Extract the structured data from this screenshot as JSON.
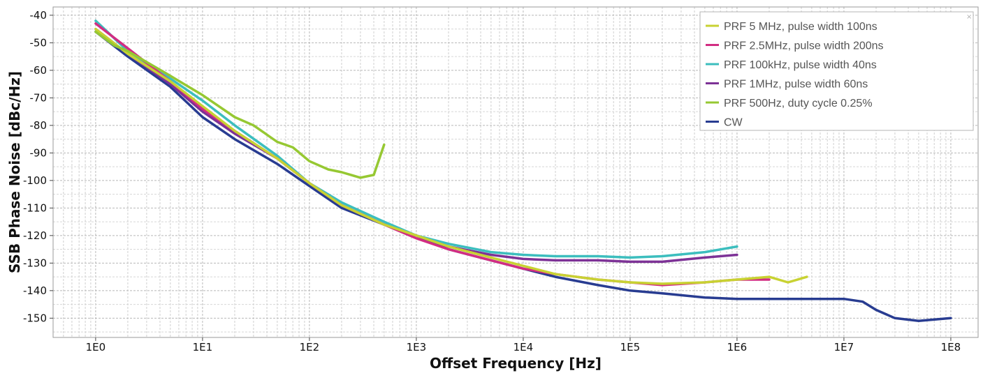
{
  "chart_data": {
    "type": "line",
    "xlabel": "Offset Frequency [Hz]",
    "ylabel": "SSB Phase Noise [dBc/Hz]",
    "x_scale": "log",
    "xlim": [
      0.4,
      180000000
    ],
    "ylim": [
      -157,
      -37
    ],
    "x_ticks": [
      {
        "value": 1,
        "label": "1E0"
      },
      {
        "value": 10,
        "label": "1E1"
      },
      {
        "value": 100,
        "label": "1E2"
      },
      {
        "value": 1000,
        "label": "1E3"
      },
      {
        "value": 10000,
        "label": "1E4"
      },
      {
        "value": 100000,
        "label": "1E5"
      },
      {
        "value": 1000000,
        "label": "1E6"
      },
      {
        "value": 10000000,
        "label": "1E7"
      },
      {
        "value": 100000000,
        "label": "1E8"
      }
    ],
    "y_ticks": [
      {
        "value": -40,
        "label": "-40"
      },
      {
        "value": -50,
        "label": "-50"
      },
      {
        "value": -60,
        "label": "-60"
      },
      {
        "value": -70,
        "label": "-70"
      },
      {
        "value": -80,
        "label": "-80"
      },
      {
        "value": -90,
        "label": "-90"
      },
      {
        "value": -100,
        "label": "-100"
      },
      {
        "value": -110,
        "label": "-110"
      },
      {
        "value": -120,
        "label": "-120"
      },
      {
        "value": -130,
        "label": "-130"
      },
      {
        "value": -140,
        "label": "-140"
      },
      {
        "value": -150,
        "label": "-150"
      }
    ],
    "grid": true,
    "legend_position": "top-right",
    "series": [
      {
        "name": "PRF 5 MHz, pulse width 100ns",
        "color": "#c8d232",
        "x": [
          1,
          2,
          5,
          10,
          20,
          50,
          100,
          200,
          500,
          1000,
          2000,
          5000,
          10000,
          20000,
          50000,
          100000,
          200000,
          500000,
          1000000,
          2000000,
          3000000,
          4500000
        ],
        "y": [
          -45,
          -54,
          -64,
          -73,
          -82,
          -92,
          -101,
          -109,
          -116,
          -120,
          -124,
          -128,
          -131,
          -134,
          -136,
          -137,
          -137.5,
          -137,
          -136,
          -135,
          -137,
          -135
        ]
      },
      {
        "name": "PRF 2.5MHz, pulse width 200ns",
        "color": "#d22d82",
        "x": [
          1,
          2,
          5,
          10,
          20,
          50,
          100,
          200,
          500,
          1000,
          2000,
          5000,
          10000,
          20000,
          50000,
          100000,
          200000,
          500000,
          1000000,
          2000000
        ],
        "y": [
          -43,
          -52,
          -64,
          -74,
          -82,
          -92,
          -101,
          -109,
          -116,
          -121,
          -125,
          -129,
          -132,
          -134,
          -136,
          -137,
          -138,
          -137,
          -136,
          -136
        ]
      },
      {
        "name": "PRF 100kHz, pulse width 40ns",
        "color": "#3cbebe",
        "x": [
          1,
          2,
          5,
          10,
          20,
          50,
          100,
          200,
          500,
          1000,
          2000,
          5000,
          10000,
          20000,
          50000,
          100000,
          200000,
          500000,
          1000000
        ],
        "y": [
          -42,
          -53,
          -63,
          -71,
          -80,
          -91,
          -101,
          -108,
          -115,
          -120,
          -123,
          -126,
          -127,
          -127.5,
          -127.5,
          -128,
          -127.5,
          -126,
          -124
        ]
      },
      {
        "name": "PRF 1MHz, pulse width 60ns",
        "color": "#7d3296",
        "x": [
          1,
          2,
          5,
          10,
          20,
          50,
          100,
          200,
          500,
          1000,
          2000,
          5000,
          10000,
          20000,
          50000,
          100000,
          200000,
          500000,
          1000000
        ],
        "y": [
          -45,
          -54,
          -65,
          -75,
          -83,
          -92,
          -101,
          -109,
          -116,
          -120,
          -124,
          -127,
          -128.5,
          -129,
          -129,
          -129.5,
          -129.5,
          -128,
          -127
        ]
      },
      {
        "name": "PRF 500Hz, duty cycle 0.25%",
        "color": "#96c832",
        "x": [
          1,
          1.5,
          2,
          3,
          5,
          10,
          20,
          30,
          50,
          70,
          100,
          150,
          200,
          300,
          400,
          500
        ],
        "y": [
          -46,
          -51,
          -53,
          -57,
          -62,
          -69,
          -77,
          -80,
          -86,
          -88,
          -93,
          -96,
          -97,
          -99,
          -98,
          -87
        ]
      },
      {
        "name": "CW",
        "color": "#283c91",
        "x": [
          1,
          2,
          5,
          10,
          20,
          50,
          100,
          200,
          500,
          1000,
          2000,
          5000,
          10000,
          20000,
          50000,
          100000,
          200000,
          500000,
          1000000,
          2000000,
          5000000,
          10000000,
          15000000,
          20000000,
          30000000,
          50000000,
          100000000
        ],
        "y": [
          -46,
          -55,
          -66,
          -77,
          -85,
          -94,
          -102,
          -110,
          -116,
          -120,
          -125,
          -129,
          -132,
          -135,
          -138,
          -140,
          -141,
          -142.5,
          -143,
          -143,
          -143,
          -143,
          -144,
          -147,
          -150,
          -151,
          -150
        ]
      }
    ]
  }
}
